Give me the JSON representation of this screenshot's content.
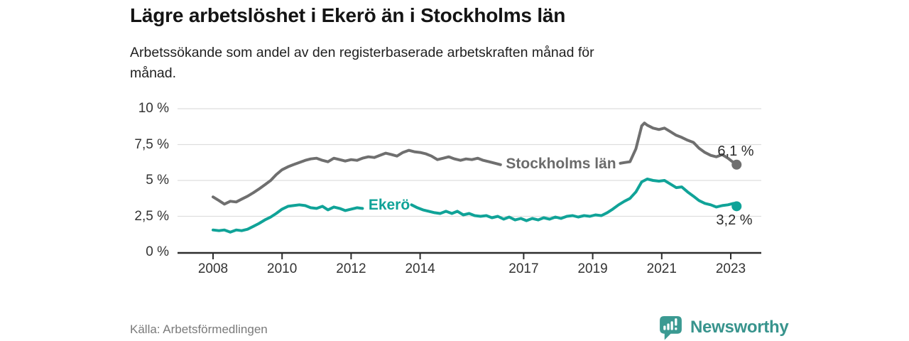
{
  "header": {
    "title": "Lägre arbetslöshet i Ekerö än i Stockholms län",
    "subtitle": "Arbetssökande som andel av den registerbaserade arbetskraften månad för månad."
  },
  "footer": {
    "source": "Källa: Arbetsförmedlingen",
    "brand_name": "Newsworthy"
  },
  "colors": {
    "stockholm_line": "#6f6f6f",
    "ekero_line": "#10a398",
    "axis": "#2d2d2d",
    "grid": "#dedede",
    "tick_label": "#333333",
    "annotation": "#2b2b2b",
    "brand_teal": "#3b9a92"
  },
  "chart_data": {
    "type": "line",
    "title": "Lägre arbetslöshet i Ekerö än i Stockholms län",
    "subtitle": "Arbetssökande som andel av den registerbaserade arbetskraften månad för månad.",
    "xlabel": "",
    "ylabel": "",
    "grid": true,
    "legend_position": "inline-labels",
    "xlim": [
      2007.0,
      2023.9
    ],
    "ylim": [
      0,
      10
    ],
    "y_ticks": [
      {
        "value": 0,
        "label": "0 %"
      },
      {
        "value": 2.5,
        "label": "2,5 %"
      },
      {
        "value": 5,
        "label": "5 %"
      },
      {
        "value": 7.5,
        "label": "7,5 %"
      },
      {
        "value": 10,
        "label": "10 %"
      }
    ],
    "x_ticks": [
      {
        "value": 2008,
        "label": "2008"
      },
      {
        "value": 2010,
        "label": "2010"
      },
      {
        "value": 2012,
        "label": "2012"
      },
      {
        "value": 2014,
        "label": "2014"
      },
      {
        "value": 2017,
        "label": "2017"
      },
      {
        "value": 2019,
        "label": "2019"
      },
      {
        "value": 2021,
        "label": "2021"
      },
      {
        "value": 2023,
        "label": "2023"
      }
    ],
    "series": [
      {
        "name": "Stockholms län",
        "color": "#6f6f6f",
        "end_label": "6,1 %",
        "end_value": 6.1,
        "points": [
          [
            2008.0,
            3.85
          ],
          [
            2008.17,
            3.6
          ],
          [
            2008.33,
            3.35
          ],
          [
            2008.5,
            3.55
          ],
          [
            2008.67,
            3.5
          ],
          [
            2008.83,
            3.7
          ],
          [
            2009.0,
            3.9
          ],
          [
            2009.17,
            4.15
          ],
          [
            2009.33,
            4.4
          ],
          [
            2009.5,
            4.7
          ],
          [
            2009.67,
            5.0
          ],
          [
            2009.83,
            5.4
          ],
          [
            2010.0,
            5.75
          ],
          [
            2010.17,
            5.95
          ],
          [
            2010.33,
            6.1
          ],
          [
            2010.5,
            6.25
          ],
          [
            2010.67,
            6.4
          ],
          [
            2010.83,
            6.5
          ],
          [
            2011.0,
            6.55
          ],
          [
            2011.17,
            6.4
          ],
          [
            2011.33,
            6.3
          ],
          [
            2011.5,
            6.55
          ],
          [
            2011.67,
            6.45
          ],
          [
            2011.83,
            6.35
          ],
          [
            2012.0,
            6.45
          ],
          [
            2012.17,
            6.4
          ],
          [
            2012.33,
            6.55
          ],
          [
            2012.5,
            6.65
          ],
          [
            2012.67,
            6.6
          ],
          [
            2012.83,
            6.75
          ],
          [
            2013.0,
            6.9
          ],
          [
            2013.17,
            6.8
          ],
          [
            2013.33,
            6.7
          ],
          [
            2013.5,
            6.95
          ],
          [
            2013.67,
            7.1
          ],
          [
            2013.83,
            7.0
          ],
          [
            2014.0,
            6.95
          ],
          [
            2014.17,
            6.85
          ],
          [
            2014.33,
            6.7
          ],
          [
            2014.5,
            6.45
          ],
          [
            2014.67,
            6.55
          ],
          [
            2014.83,
            6.65
          ],
          [
            2015.0,
            6.5
          ],
          [
            2015.17,
            6.4
          ],
          [
            2015.33,
            6.5
          ],
          [
            2015.5,
            6.45
          ],
          [
            2015.67,
            6.55
          ],
          [
            2015.83,
            6.4
          ],
          [
            2016.0,
            6.3
          ],
          [
            2016.17,
            6.2
          ],
          [
            2016.33,
            6.1
          ],
          [
            2019.8,
            6.2
          ],
          [
            2019.92,
            6.25
          ],
          [
            2020.08,
            6.3
          ],
          [
            2020.25,
            7.2
          ],
          [
            2020.42,
            8.8
          ],
          [
            2020.5,
            9.0
          ],
          [
            2020.58,
            8.85
          ],
          [
            2020.75,
            8.65
          ],
          [
            2020.92,
            8.55
          ],
          [
            2021.08,
            8.65
          ],
          [
            2021.25,
            8.4
          ],
          [
            2021.42,
            8.15
          ],
          [
            2021.58,
            8.0
          ],
          [
            2021.75,
            7.8
          ],
          [
            2021.92,
            7.65
          ],
          [
            2022.08,
            7.25
          ],
          [
            2022.25,
            6.95
          ],
          [
            2022.42,
            6.75
          ],
          [
            2022.58,
            6.65
          ],
          [
            2022.75,
            6.8
          ],
          [
            2022.92,
            6.55
          ],
          [
            2023.08,
            6.25
          ],
          [
            2023.17,
            6.1
          ]
        ]
      },
      {
        "name": "Ekerö",
        "color": "#10a398",
        "end_label": "3,2 %",
        "end_value": 3.2,
        "points": [
          [
            2008.0,
            1.55
          ],
          [
            2008.17,
            1.5
          ],
          [
            2008.33,
            1.55
          ],
          [
            2008.5,
            1.4
          ],
          [
            2008.67,
            1.55
          ],
          [
            2008.83,
            1.5
          ],
          [
            2009.0,
            1.6
          ],
          [
            2009.17,
            1.8
          ],
          [
            2009.33,
            2.0
          ],
          [
            2009.5,
            2.25
          ],
          [
            2009.67,
            2.45
          ],
          [
            2009.83,
            2.7
          ],
          [
            2010.0,
            3.0
          ],
          [
            2010.17,
            3.2
          ],
          [
            2010.33,
            3.25
          ],
          [
            2010.5,
            3.3
          ],
          [
            2010.67,
            3.25
          ],
          [
            2010.83,
            3.1
          ],
          [
            2011.0,
            3.05
          ],
          [
            2011.17,
            3.2
          ],
          [
            2011.33,
            2.95
          ],
          [
            2011.5,
            3.15
          ],
          [
            2011.67,
            3.05
          ],
          [
            2011.83,
            2.9
          ],
          [
            2012.0,
            3.0
          ],
          [
            2012.17,
            3.1
          ],
          [
            2012.33,
            3.05
          ],
          [
            2013.75,
            3.3
          ],
          [
            2013.92,
            3.1
          ],
          [
            2014.08,
            2.95
          ],
          [
            2014.25,
            2.85
          ],
          [
            2014.42,
            2.75
          ],
          [
            2014.58,
            2.7
          ],
          [
            2014.75,
            2.85
          ],
          [
            2014.92,
            2.7
          ],
          [
            2015.08,
            2.85
          ],
          [
            2015.25,
            2.6
          ],
          [
            2015.42,
            2.7
          ],
          [
            2015.58,
            2.55
          ],
          [
            2015.75,
            2.5
          ],
          [
            2015.92,
            2.55
          ],
          [
            2016.08,
            2.4
          ],
          [
            2016.25,
            2.5
          ],
          [
            2016.42,
            2.3
          ],
          [
            2016.58,
            2.45
          ],
          [
            2016.75,
            2.25
          ],
          [
            2016.92,
            2.35
          ],
          [
            2017.08,
            2.2
          ],
          [
            2017.25,
            2.35
          ],
          [
            2017.42,
            2.25
          ],
          [
            2017.58,
            2.4
          ],
          [
            2017.75,
            2.3
          ],
          [
            2017.92,
            2.45
          ],
          [
            2018.08,
            2.35
          ],
          [
            2018.25,
            2.5
          ],
          [
            2018.42,
            2.55
          ],
          [
            2018.58,
            2.45
          ],
          [
            2018.75,
            2.55
          ],
          [
            2018.92,
            2.5
          ],
          [
            2019.08,
            2.6
          ],
          [
            2019.25,
            2.55
          ],
          [
            2019.42,
            2.75
          ],
          [
            2019.58,
            3.0
          ],
          [
            2019.75,
            3.3
          ],
          [
            2019.92,
            3.55
          ],
          [
            2020.08,
            3.75
          ],
          [
            2020.25,
            4.2
          ],
          [
            2020.42,
            4.9
          ],
          [
            2020.58,
            5.1
          ],
          [
            2020.75,
            5.0
          ],
          [
            2020.92,
            4.95
          ],
          [
            2021.08,
            5.0
          ],
          [
            2021.25,
            4.75
          ],
          [
            2021.42,
            4.5
          ],
          [
            2021.58,
            4.55
          ],
          [
            2021.75,
            4.2
          ],
          [
            2021.92,
            3.9
          ],
          [
            2022.08,
            3.6
          ],
          [
            2022.25,
            3.4
          ],
          [
            2022.42,
            3.3
          ],
          [
            2022.58,
            3.15
          ],
          [
            2022.75,
            3.25
          ],
          [
            2022.92,
            3.3
          ],
          [
            2023.08,
            3.4
          ],
          [
            2023.17,
            3.2
          ]
        ]
      }
    ]
  }
}
